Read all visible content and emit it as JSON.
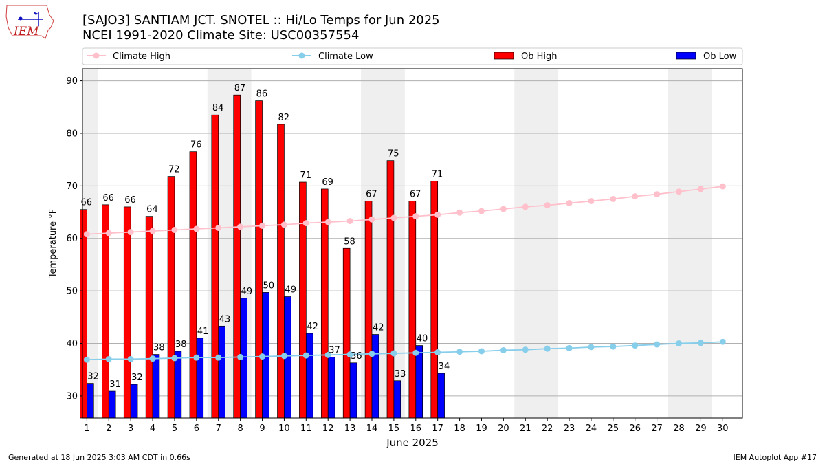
{
  "header": {
    "title_line1": "[SAJO3] SANTIAM JCT. SNOTEL :: Hi/Lo Temps for Jun 2025",
    "title_line2": "NCEI 1991-2020 Climate Site: USC00357554",
    "logo_text": "IEM"
  },
  "footer": {
    "left": "Generated at 18 Jun 2025 3:03 AM CDT in 0.66s",
    "right": "IEM Autoplot App #17"
  },
  "chart_data": {
    "type": "bar",
    "xlabel": "June 2025",
    "ylabel": "Temperature °F",
    "ylim": [
      25.8,
      92.3
    ],
    "yticks": [
      30,
      40,
      50,
      60,
      70,
      80,
      90
    ],
    "grid": true,
    "legend_position": "top",
    "days": [
      1,
      2,
      3,
      4,
      5,
      6,
      7,
      8,
      9,
      10,
      11,
      12,
      13,
      14,
      15,
      16,
      17,
      18,
      19,
      20,
      21,
      22,
      23,
      24,
      25,
      26,
      27,
      28,
      29,
      30
    ],
    "weekend_shading": [
      [
        1,
        1
      ],
      [
        7,
        8
      ],
      [
        14,
        15
      ],
      [
        21,
        22
      ],
      [
        28,
        29
      ]
    ],
    "series": [
      {
        "name": "Climate High",
        "kind": "line",
        "color": "#ffc0cb",
        "values": [
          60.8,
          61.0,
          61.2,
          61.4,
          61.6,
          61.8,
          62.0,
          62.2,
          62.4,
          62.6,
          62.9,
          63.1,
          63.3,
          63.6,
          63.9,
          64.2,
          64.5,
          64.9,
          65.2,
          65.6,
          66.0,
          66.3,
          66.7,
          67.1,
          67.5,
          68.0,
          68.4,
          68.9,
          69.4,
          69.9
        ]
      },
      {
        "name": "Climate Low",
        "kind": "line",
        "color": "#87ceeb",
        "values": [
          36.9,
          37.0,
          37.0,
          37.1,
          37.2,
          37.3,
          37.3,
          37.4,
          37.5,
          37.6,
          37.7,
          37.8,
          37.9,
          38.0,
          38.1,
          38.2,
          38.3,
          38.4,
          38.5,
          38.7,
          38.8,
          39.0,
          39.1,
          39.3,
          39.4,
          39.6,
          39.8,
          40.0,
          40.1,
          40.3
        ]
      },
      {
        "name": "Ob High",
        "kind": "bar",
        "color": "#ff0000",
        "values": [
          65.5,
          66.4,
          66.0,
          64.2,
          71.8,
          76.5,
          83.5,
          87.3,
          86.2,
          81.7,
          70.7,
          69.4,
          58.1,
          67.1,
          74.8,
          67.1,
          70.9
        ],
        "labels": [
          "66",
          "66",
          "66",
          "64",
          "72",
          "76",
          "84",
          "87",
          "86",
          "82",
          "71",
          "69",
          "58",
          "67",
          "75",
          "67",
          "71"
        ]
      },
      {
        "name": "Ob Low",
        "kind": "bar",
        "color": "#0000ff",
        "values": [
          32.4,
          30.9,
          32.2,
          37.9,
          38.5,
          41.0,
          43.3,
          48.6,
          49.7,
          48.9,
          41.9,
          37.4,
          36.3,
          41.7,
          32.9,
          39.6,
          34.3
        ],
        "labels": [
          "32",
          "31",
          "32",
          "38",
          "38",
          "41",
          "43",
          "49",
          "50",
          "49",
          "42",
          "37",
          "36",
          "42",
          "33",
          "40",
          "34"
        ]
      }
    ]
  }
}
